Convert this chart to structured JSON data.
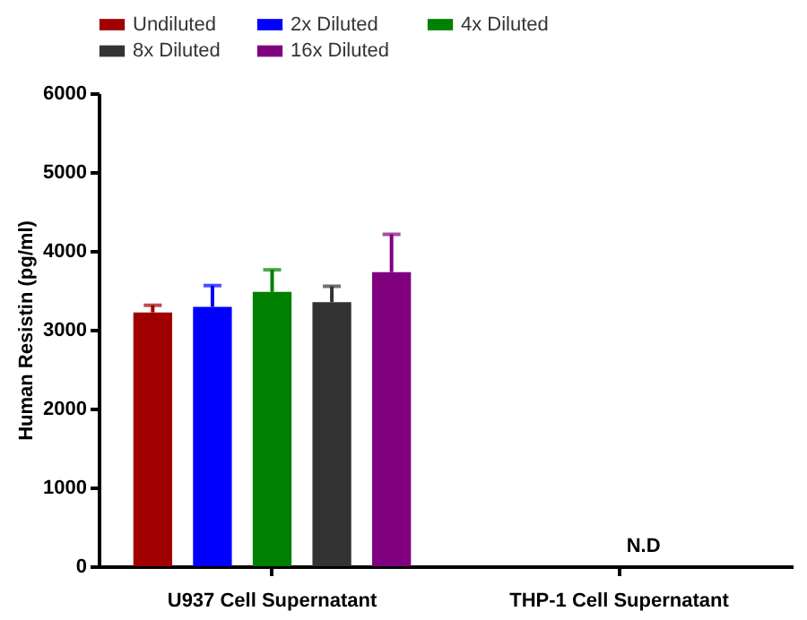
{
  "chart_data": {
    "type": "bar",
    "categories": [
      "U937 Cell Supernatant",
      "THP-1 Cell Supernatant"
    ],
    "series": [
      {
        "name": "Undiluted",
        "color": "#a00000",
        "values": [
          3220,
          null
        ],
        "errors": [
          [
            3220,
            3310
          ],
          null
        ]
      },
      {
        "name": "2x Diluted",
        "color": "#0000ff",
        "values": [
          3290,
          null
        ],
        "errors": [
          [
            3290,
            3560
          ],
          null
        ]
      },
      {
        "name": "4x Diluted",
        "color": "#008000",
        "values": [
          3480,
          null
        ],
        "errors": [
          [
            3480,
            3760
          ],
          null
        ]
      },
      {
        "name": "8x Diluted",
        "color": "#333333",
        "values": [
          3350,
          null
        ],
        "errors": [
          [
            3350,
            3550
          ],
          null
        ]
      },
      {
        "name": "16x Diluted",
        "color": "#800080",
        "values": [
          3730,
          null
        ],
        "errors": [
          [
            3730,
            4210
          ],
          null
        ]
      }
    ],
    "ylabel": "Human Resistin (pg/ml)",
    "ylim": [
      0,
      6000
    ],
    "yticks": [
      0,
      1000,
      2000,
      3000,
      4000,
      5000,
      6000
    ],
    "annotations": [
      "N.D"
    ],
    "grid": false,
    "legend": "top"
  }
}
